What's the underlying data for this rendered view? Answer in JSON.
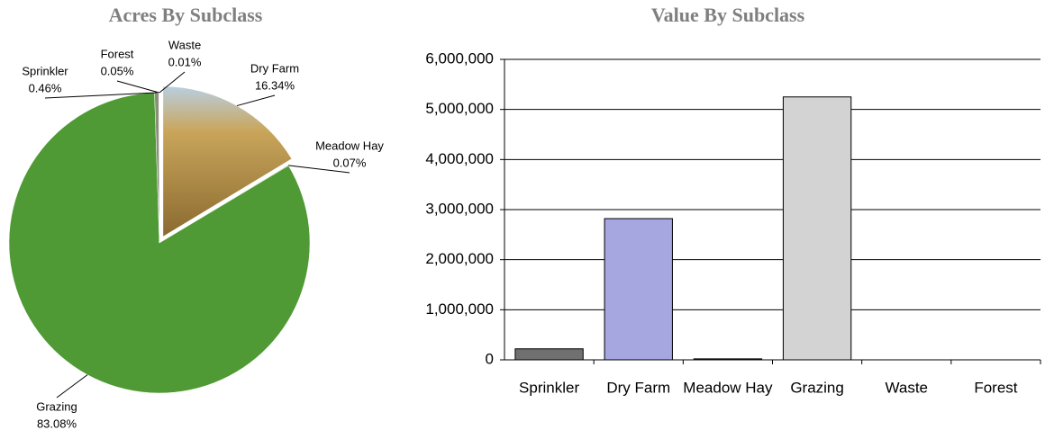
{
  "chart_data": [
    {
      "type": "pie",
      "title": "Acres By Subclass",
      "categories": [
        "Dry Farm",
        "Meadow Hay",
        "Grazing",
        "Sprinkler",
        "Forest",
        "Waste"
      ],
      "values": [
        16.34,
        0.07,
        83.08,
        0.46,
        0.05,
        0.01
      ],
      "value_labels": [
        "16.34%",
        "0.07%",
        "83.08%",
        "0.46%",
        "0.05%",
        "0.01%"
      ],
      "colors": [
        "#c9a55a",
        "#6f8f3a",
        "#4f9a35",
        "#8a8f7a",
        "#7c7c6a",
        "#9a9a90"
      ]
    },
    {
      "type": "bar",
      "title": "Value By Subclass",
      "categories": [
        "Sprinkler",
        "Dry Farm",
        "Meadow Hay",
        "Grazing",
        "Waste",
        "Forest"
      ],
      "values": [
        220000,
        2820000,
        20000,
        5250000,
        0,
        0
      ],
      "colors": [
        "#707070",
        "#a6a6e0",
        "#333333",
        "#d3d3d3",
        "#d3d3d3",
        "#d3d3d3"
      ],
      "ylim": [
        0,
        6000000
      ],
      "yticks": [
        0,
        {
          "value": 1000000,
          "label": "1,000,000"
        },
        {
          "value": 2000000,
          "label": "2,000,000"
        },
        {
          "value": 3000000,
          "label": "3,000,000"
        },
        {
          "value": 4000000,
          "label": "4,000,000"
        },
        {
          "value": 5000000,
          "label": "5,000,000"
        },
        {
          "value": 6000000,
          "label": "6,000,000"
        }
      ],
      "grid": true
    }
  ]
}
